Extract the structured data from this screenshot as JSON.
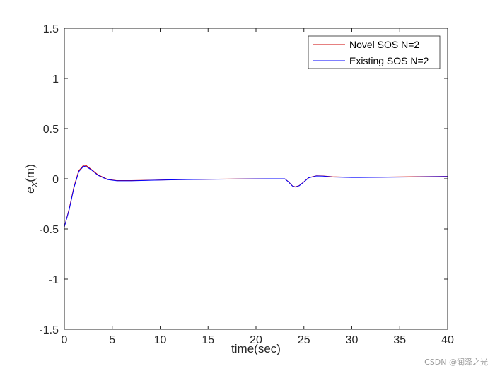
{
  "chart_data": {
    "type": "line",
    "title": "",
    "xlabel": "time(sec)",
    "ylabel_base": "e",
    "ylabel_sub": "x",
    "ylabel_unit": "(m)",
    "xlim": [
      0,
      40
    ],
    "ylim": [
      -1.5,
      1.5
    ],
    "xticks": [
      0,
      5,
      10,
      15,
      20,
      25,
      30,
      35,
      40
    ],
    "yticks": [
      -1.5,
      -1,
      -0.5,
      0,
      0.5,
      1,
      1.5
    ],
    "xtick_labels": [
      "0",
      "5",
      "10",
      "15",
      "20",
      "25",
      "30",
      "35",
      "40"
    ],
    "ytick_labels": [
      "-1.5",
      "-1",
      "-0.5",
      "0",
      "0.5",
      "1",
      "1.5"
    ],
    "grid": false,
    "legend_position": "top-right",
    "series": [
      {
        "name": "Novel SOS N=2",
        "color": "#cc0000",
        "x": [
          0,
          0.5,
          1.0,
          1.5,
          2.0,
          2.3,
          2.8,
          3.5,
          4.5,
          5.5,
          7,
          9,
          12,
          15,
          18,
          20,
          22,
          23.0,
          23.4,
          23.8,
          24.1,
          24.5,
          25.0,
          25.5,
          26.3,
          27,
          28,
          30,
          33,
          36,
          38,
          40
        ],
        "y": [
          -0.48,
          -0.3,
          -0.08,
          0.08,
          0.135,
          0.13,
          0.095,
          0.04,
          -0.005,
          -0.018,
          -0.018,
          -0.014,
          -0.008,
          -0.004,
          -0.002,
          -0.001,
          0.0,
          0.0,
          -0.03,
          -0.07,
          -0.08,
          -0.068,
          -0.03,
          0.012,
          0.03,
          0.028,
          0.02,
          0.015,
          0.017,
          0.02,
          0.022,
          0.024
        ]
      },
      {
        "name": "Existing SOS N=2",
        "color": "#0000ff",
        "x": [
          0,
          0.5,
          1.0,
          1.5,
          2.0,
          2.3,
          2.8,
          3.5,
          4.5,
          5.5,
          7,
          9,
          12,
          15,
          18,
          20,
          22,
          23.0,
          23.4,
          23.8,
          24.1,
          24.5,
          25.0,
          25.5,
          26.3,
          27,
          28,
          30,
          33,
          36,
          38,
          40
        ],
        "y": [
          -0.48,
          -0.31,
          -0.09,
          0.07,
          0.125,
          0.12,
          0.09,
          0.035,
          -0.008,
          -0.02,
          -0.02,
          -0.015,
          -0.009,
          -0.005,
          -0.003,
          -0.001,
          0.0,
          0.0,
          -0.032,
          -0.072,
          -0.082,
          -0.07,
          -0.032,
          0.01,
          0.028,
          0.026,
          0.018,
          0.013,
          0.015,
          0.018,
          0.02,
          0.022
        ]
      }
    ]
  },
  "watermark": "CSDN @润泽之光"
}
